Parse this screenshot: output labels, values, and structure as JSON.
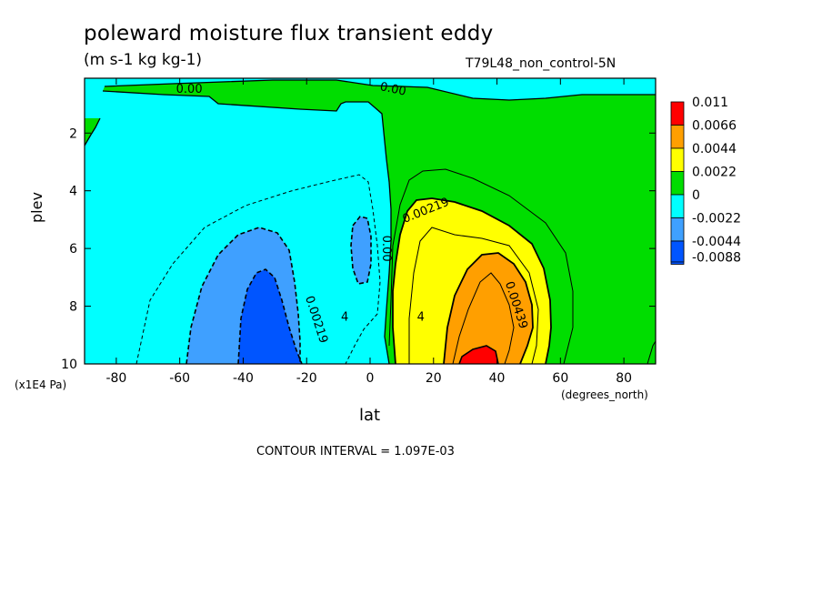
{
  "chart_data": {
    "type": "filled-contour",
    "title": "poleward moisture flux transient eddy",
    "units": "(m s-1 kg kg-1)",
    "case_label": "T79L48_non_control-5N",
    "xlabel": "lat",
    "ylabel": "plev",
    "x_unit": "(degrees_north)",
    "y_unit": "(x1E4 Pa)",
    "xlim": [
      -90,
      90
    ],
    "ylim": [
      10,
      0.1
    ],
    "x_ticks": [
      -80,
      -60,
      -40,
      -20,
      0,
      20,
      40,
      60,
      80
    ],
    "y_ticks": [
      2,
      4,
      6,
      8,
      10
    ],
    "contour_interval_text": "CONTOUR INTERVAL = 1.097E-03",
    "colorbar": [
      {
        "label": "0.011",
        "color": "#ff0000"
      },
      {
        "label": "0.0066",
        "color": "#ff9f00"
      },
      {
        "label": "0.0044",
        "color": "#ffff00"
      },
      {
        "label": "0.0022",
        "color": "#00dd00"
      },
      {
        "label": "0",
        "color": "#00ffff"
      },
      {
        "label": "-0.0022",
        "color": "#3fa0ff"
      },
      {
        "label": "-0.0044",
        "color": "#0055ff"
      },
      {
        "label": "-0.0088",
        "color": "#0055ff"
      }
    ],
    "contour_labels": [
      {
        "text": "0.00",
        "lat": -57,
        "plev": 0.6
      },
      {
        "text": "0.00",
        "lat": 7,
        "plev": 0.6
      },
      {
        "text": "0.00219",
        "lat": 18,
        "plev": 4.8
      },
      {
        "text": "0.00",
        "lat": 4,
        "plev": 6.0
      },
      {
        "text": "0.00439",
        "lat": 45,
        "plev": 8.0
      },
      {
        "text": "0.00219",
        "lat": -18,
        "plev": 8.5
      },
      {
        "text": "4",
        "lat": 16,
        "plev": 8.5
      },
      {
        "text": "4",
        "lat": -8,
        "plev": 8.5
      }
    ]
  }
}
